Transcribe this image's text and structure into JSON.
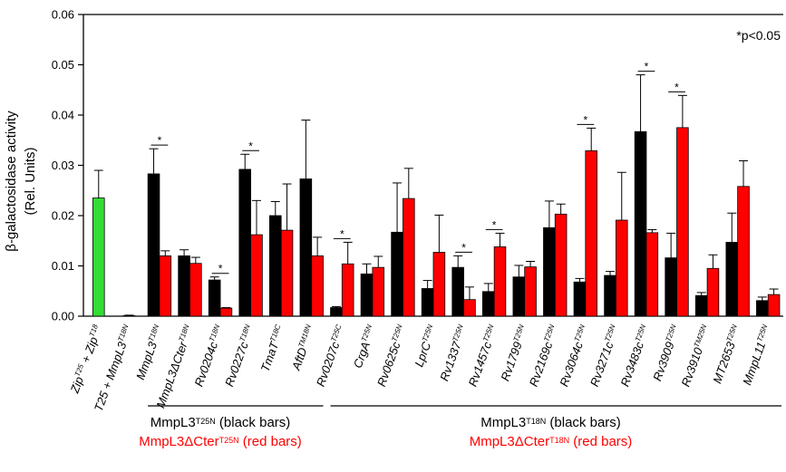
{
  "chart_data": {
    "type": "bar",
    "ylabel_line1": "β-galactosidase activity",
    "ylabel_line2": "(Rel. Units)",
    "ylim": [
      0,
      0.06
    ],
    "yticks": [
      "0.00",
      "0.01",
      "0.02",
      "0.03",
      "0.04",
      "0.05",
      "0.06"
    ],
    "annotation": "*p<0.05",
    "colors": {
      "black": "#000000",
      "red": "#ff0000",
      "green": "#33dd33"
    },
    "controls": [
      {
        "label": "Zip",
        "sup": "T25",
        "label2": " + Zip",
        "sup2": "T18",
        "value": 0.0235,
        "err": 0.0055,
        "color": "green"
      },
      {
        "label": "T25 + MmpL3",
        "sup": "T18N",
        "value": 0.0001,
        "err": 0.0001,
        "color": "black"
      }
    ],
    "pairs": [
      {
        "label": "MmpL3",
        "sup": "T18N",
        "black": 0.0283,
        "black_err": 0.005,
        "red": 0.012,
        "red_err": 0.001,
        "sig": true
      },
      {
        "label": "MmpL3ΔCter",
        "sup": "T18N",
        "black": 0.012,
        "black_err": 0.0012,
        "red": 0.0105,
        "red_err": 0.0012,
        "sig": false
      },
      {
        "label": "Rv0204c",
        "sup": "T18N",
        "black": 0.0072,
        "black_err": 0.0006,
        "red": 0.0016,
        "red_err": 0.0001,
        "sig": true
      },
      {
        "label": "Rv0227c",
        "sup": "T18N",
        "black": 0.0292,
        "black_err": 0.003,
        "red": 0.0162,
        "red_err": 0.0068,
        "sig": true
      },
      {
        "label": "TmaT",
        "sup": "T18C",
        "black": 0.02,
        "black_err": 0.0028,
        "red": 0.0171,
        "red_err": 0.0092,
        "sig": false
      },
      {
        "label": "AftD",
        "sup": "TM18N",
        "black": 0.0273,
        "black_err": 0.0117,
        "red": 0.012,
        "red_err": 0.0037,
        "sig": false
      },
      {
        "label": "Rv0207c",
        "sup": "T25C",
        "black": 0.0017,
        "black_err": 0.0002,
        "red": 0.0104,
        "red_err": 0.0043,
        "sig": true
      },
      {
        "label": "CrgA",
        "sup": "T25N",
        "black": 0.0084,
        "black_err": 0.002,
        "red": 0.0097,
        "red_err": 0.0022,
        "sig": false
      },
      {
        "label": "Rv0625c",
        "sup": "T25N",
        "black": 0.0167,
        "black_err": 0.0098,
        "red": 0.0234,
        "red_err": 0.006,
        "sig": false
      },
      {
        "label": "LprC",
        "sup": "T25N",
        "black": 0.0055,
        "black_err": 0.0016,
        "red": 0.0127,
        "red_err": 0.0074,
        "sig": false
      },
      {
        "label": "Rv1337",
        "sup": "T25N",
        "black": 0.0097,
        "black_err": 0.0023,
        "red": 0.0033,
        "red_err": 0.0025,
        "sig": true
      },
      {
        "label": "Rv1457c",
        "sup": "T25N",
        "black": 0.0049,
        "black_err": 0.0016,
        "red": 0.0138,
        "red_err": 0.0027,
        "sig": true
      },
      {
        "label": "Rv1799",
        "sup": "T25N",
        "black": 0.0078,
        "black_err": 0.0023,
        "red": 0.0098,
        "red_err": 0.0011,
        "sig": false
      },
      {
        "label": "Rv2169c",
        "sup": "T25N",
        "black": 0.0176,
        "black_err": 0.0053,
        "red": 0.0203,
        "red_err": 0.002,
        "sig": false
      },
      {
        "label": "Rv3064c",
        "sup": "T25N",
        "black": 0.0068,
        "black_err": 0.0007,
        "red": 0.0329,
        "red_err": 0.0045,
        "sig": true
      },
      {
        "label": "Rv3271c",
        "sup": "T25N",
        "black": 0.0081,
        "black_err": 0.0008,
        "red": 0.0191,
        "red_err": 0.0095,
        "sig": false
      },
      {
        "label": "Rv3483c",
        "sup": "T25N",
        "black": 0.0367,
        "black_err": 0.0113,
        "red": 0.0166,
        "red_err": 0.0006,
        "sig": true
      },
      {
        "label": "Rv3909",
        "sup": "T25N",
        "black": 0.0116,
        "black_err": 0.0049,
        "red": 0.0375,
        "red_err": 0.0064,
        "sig": true
      },
      {
        "label": "Rv3910",
        "sup": "TM25N",
        "black": 0.0041,
        "black_err": 0.0006,
        "red": 0.0095,
        "red_err": 0.0027,
        "sig": false
      },
      {
        "label": "MT2653",
        "sup": "T25N",
        "black": 0.0147,
        "black_err": 0.0058,
        "red": 0.0258,
        "red_err": 0.0051,
        "sig": false
      },
      {
        "label": "MmpL11",
        "sup": "T25N",
        "black": 0.0031,
        "black_err": 0.0007,
        "red": 0.0043,
        "red_err": 0.0011,
        "sig": false
      }
    ],
    "groups": [
      {
        "line1": "MmpL3",
        "sup1": "T25N",
        "rest1": " (black bars)",
        "line2": "MmpL3ΔCter",
        "sup2": "T25N",
        "rest2": " (red bars)"
      },
      {
        "line1": "MmpL3",
        "sup1": "T18N",
        "rest1": " (black bars)",
        "line2": "MmpL3ΔCter",
        "sup2": "T18N",
        "rest2": " (red bars)"
      }
    ]
  }
}
